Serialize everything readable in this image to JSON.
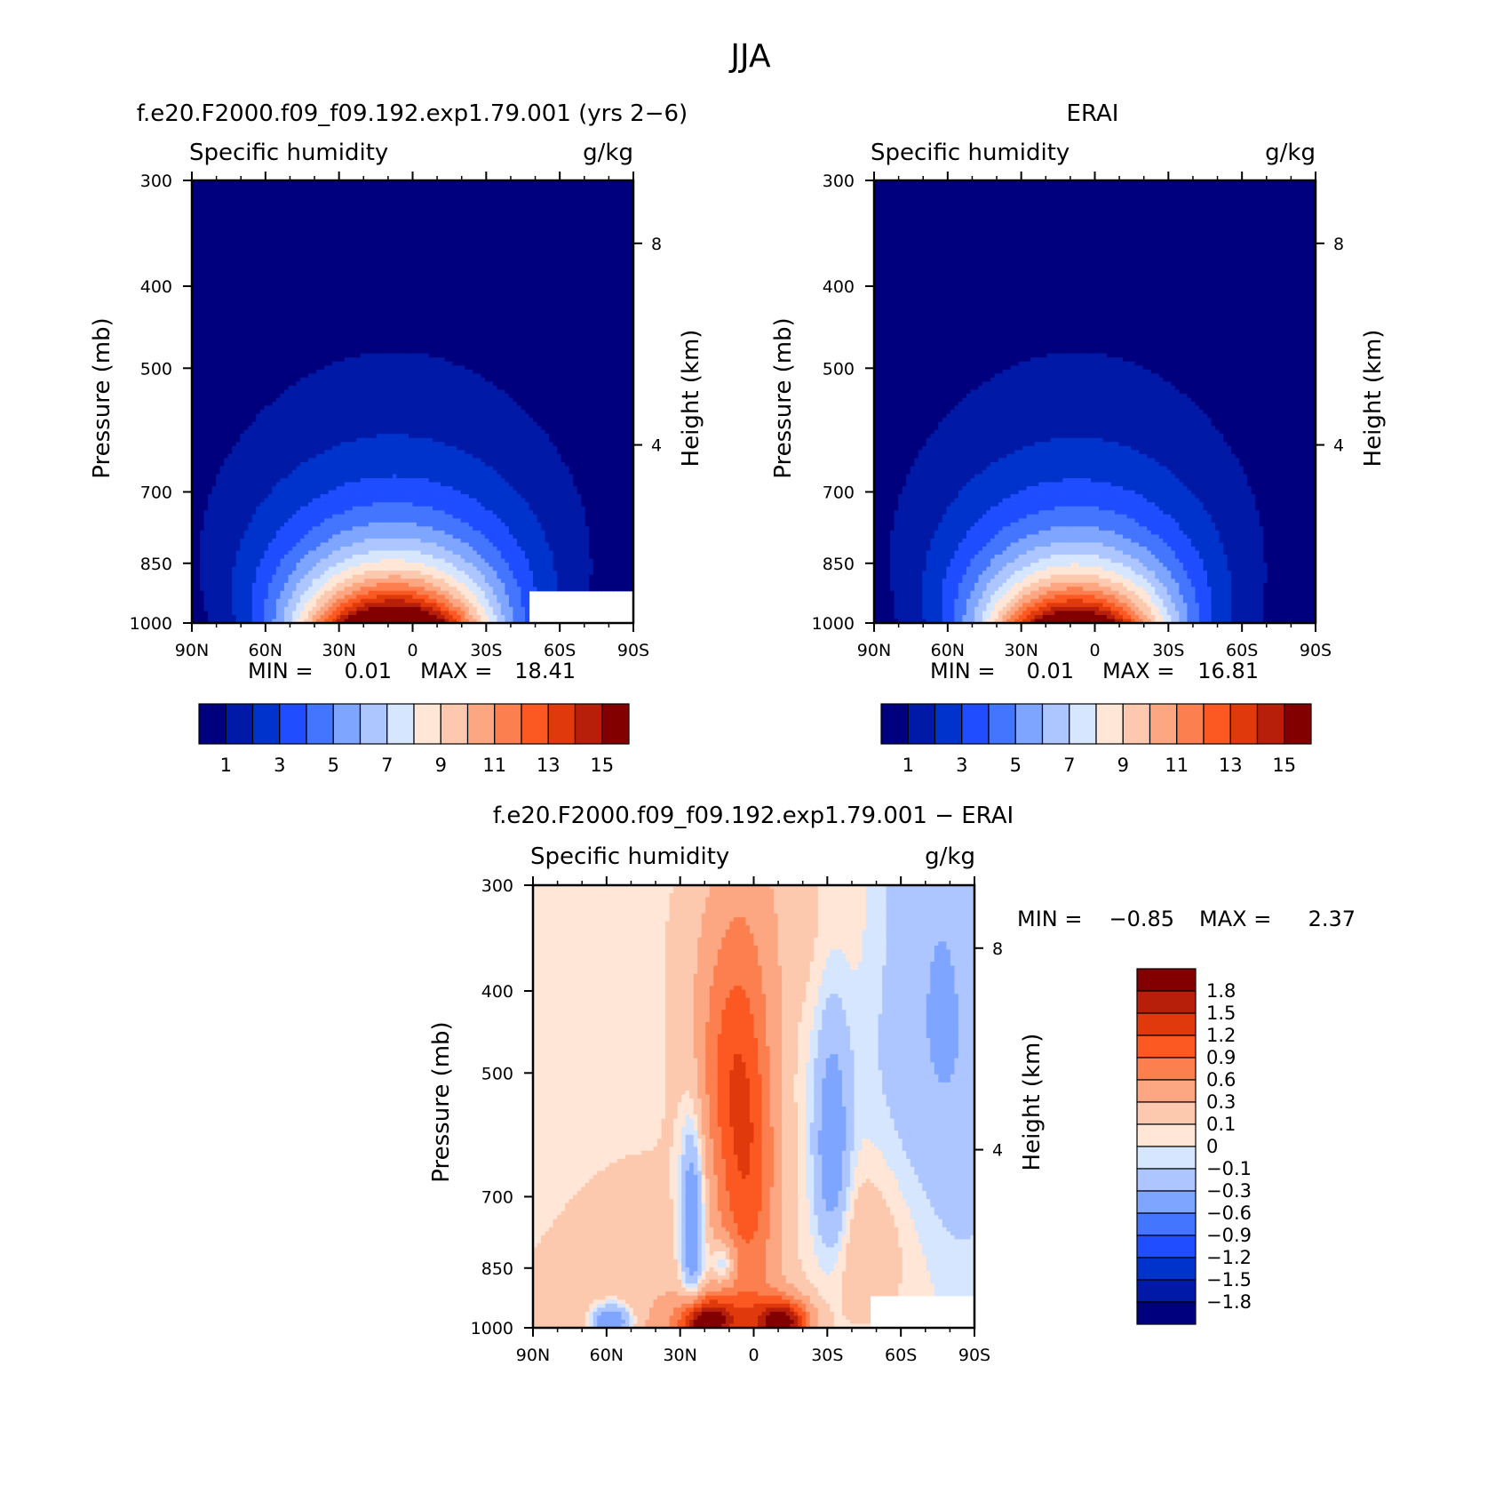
{
  "figure": {
    "title": "JJA",
    "palette_abs": [
      "#00007f",
      "#0019a6",
      "#0033cc",
      "#1f4dff",
      "#4475ff",
      "#7ea5ff",
      "#adc6ff",
      "#d6e6ff",
      "#ffe6d6",
      "#fcc8ae",
      "#fca682",
      "#fc7f4f",
      "#fc5822",
      "#e03a0c",
      "#b81f0b",
      "#820000"
    ],
    "palette_diff": [
      "#00007f",
      "#0019a6",
      "#0033cc",
      "#1f4dff",
      "#4475ff",
      "#7ea5ff",
      "#adc6ff",
      "#d6e6ff",
      "#ffe6d6",
      "#fcc8ae",
      "#fca682",
      "#fc7f4f",
      "#fc5822",
      "#e03a0c",
      "#b81f0b",
      "#820000"
    ]
  },
  "chart_data": [
    {
      "type": "heatmap",
      "panel": "model",
      "title": "f.e20.F2000.f09_f09.192.exp1.79.001 (yrs 2−6)",
      "field_label": "Specific humidity",
      "units": "g/kg",
      "xlabel": "",
      "ylabel": "Pressure (mb)",
      "y2label": "Height (km)",
      "xticks": [
        "90N",
        "60N",
        "30N",
        "0",
        "30S",
        "60S",
        "90S"
      ],
      "yticks": [
        "300",
        "400",
        "500",
        "700",
        "850",
        "1000"
      ],
      "y2ticks": [
        "8",
        "4"
      ],
      "min_label": "MIN =",
      "min_value": "0.01",
      "max_label": "MAX =",
      "max_value": "18.41",
      "colorbar_labels": [
        "1",
        "3",
        "5",
        "7",
        "9",
        "11",
        "13",
        "15"
      ],
      "levels": [
        1,
        2,
        3,
        4,
        5,
        6,
        7,
        8,
        9,
        10,
        11,
        12,
        13,
        14,
        15
      ],
      "peak_value": 18.41,
      "peak_lat": 8,
      "missing_region": "surface below ~900 mb south of ~50S"
    },
    {
      "type": "heatmap",
      "panel": "obs",
      "title": "ERAI",
      "field_label": "Specific humidity",
      "units": "g/kg",
      "ylabel": "Pressure (mb)",
      "y2label": "Height (km)",
      "xticks": [
        "90N",
        "60N",
        "30N",
        "0",
        "30S",
        "60S",
        "90S"
      ],
      "yticks": [
        "300",
        "400",
        "500",
        "700",
        "850",
        "1000"
      ],
      "y2ticks": [
        "8",
        "4"
      ],
      "min_label": "MIN =",
      "min_value": "0.01",
      "max_label": "MAX =",
      "max_value": "16.81",
      "colorbar_labels": [
        "1",
        "3",
        "5",
        "7",
        "9",
        "11",
        "13",
        "15"
      ],
      "levels": [
        1,
        2,
        3,
        4,
        5,
        6,
        7,
        8,
        9,
        10,
        11,
        12,
        13,
        14,
        15
      ],
      "peak_value": 16.81,
      "peak_lat": 8
    },
    {
      "type": "heatmap",
      "panel": "diff",
      "title": "f.e20.F2000.f09_f09.192.exp1.79.001 − ERAI",
      "field_label": "Specific humidity",
      "units": "g/kg",
      "ylabel": "Pressure (mb)",
      "y2label": "Height (km)",
      "xticks": [
        "90N",
        "60N",
        "30N",
        "0",
        "30S",
        "60S",
        "90S"
      ],
      "yticks": [
        "300",
        "400",
        "500",
        "700",
        "850",
        "1000"
      ],
      "y2ticks": [
        "8",
        "4"
      ],
      "min_label": "MIN =",
      "min_value": "−0.85",
      "max_label": "MAX =",
      "max_value": "2.37",
      "colorbar_labels": [
        "1.8",
        "1.5",
        "1.2",
        "0.9",
        "0.6",
        "0.3",
        "0.1",
        "0",
        "−0.1",
        "−0.3",
        "−0.6",
        "−0.9",
        "−1.2",
        "−1.5",
        "−1.8"
      ],
      "levels": [
        -1.8,
        -1.5,
        -1.2,
        -0.9,
        -0.6,
        -0.3,
        -0.1,
        0,
        0.1,
        0.3,
        0.6,
        0.9,
        1.2,
        1.5,
        1.8
      ]
    }
  ]
}
